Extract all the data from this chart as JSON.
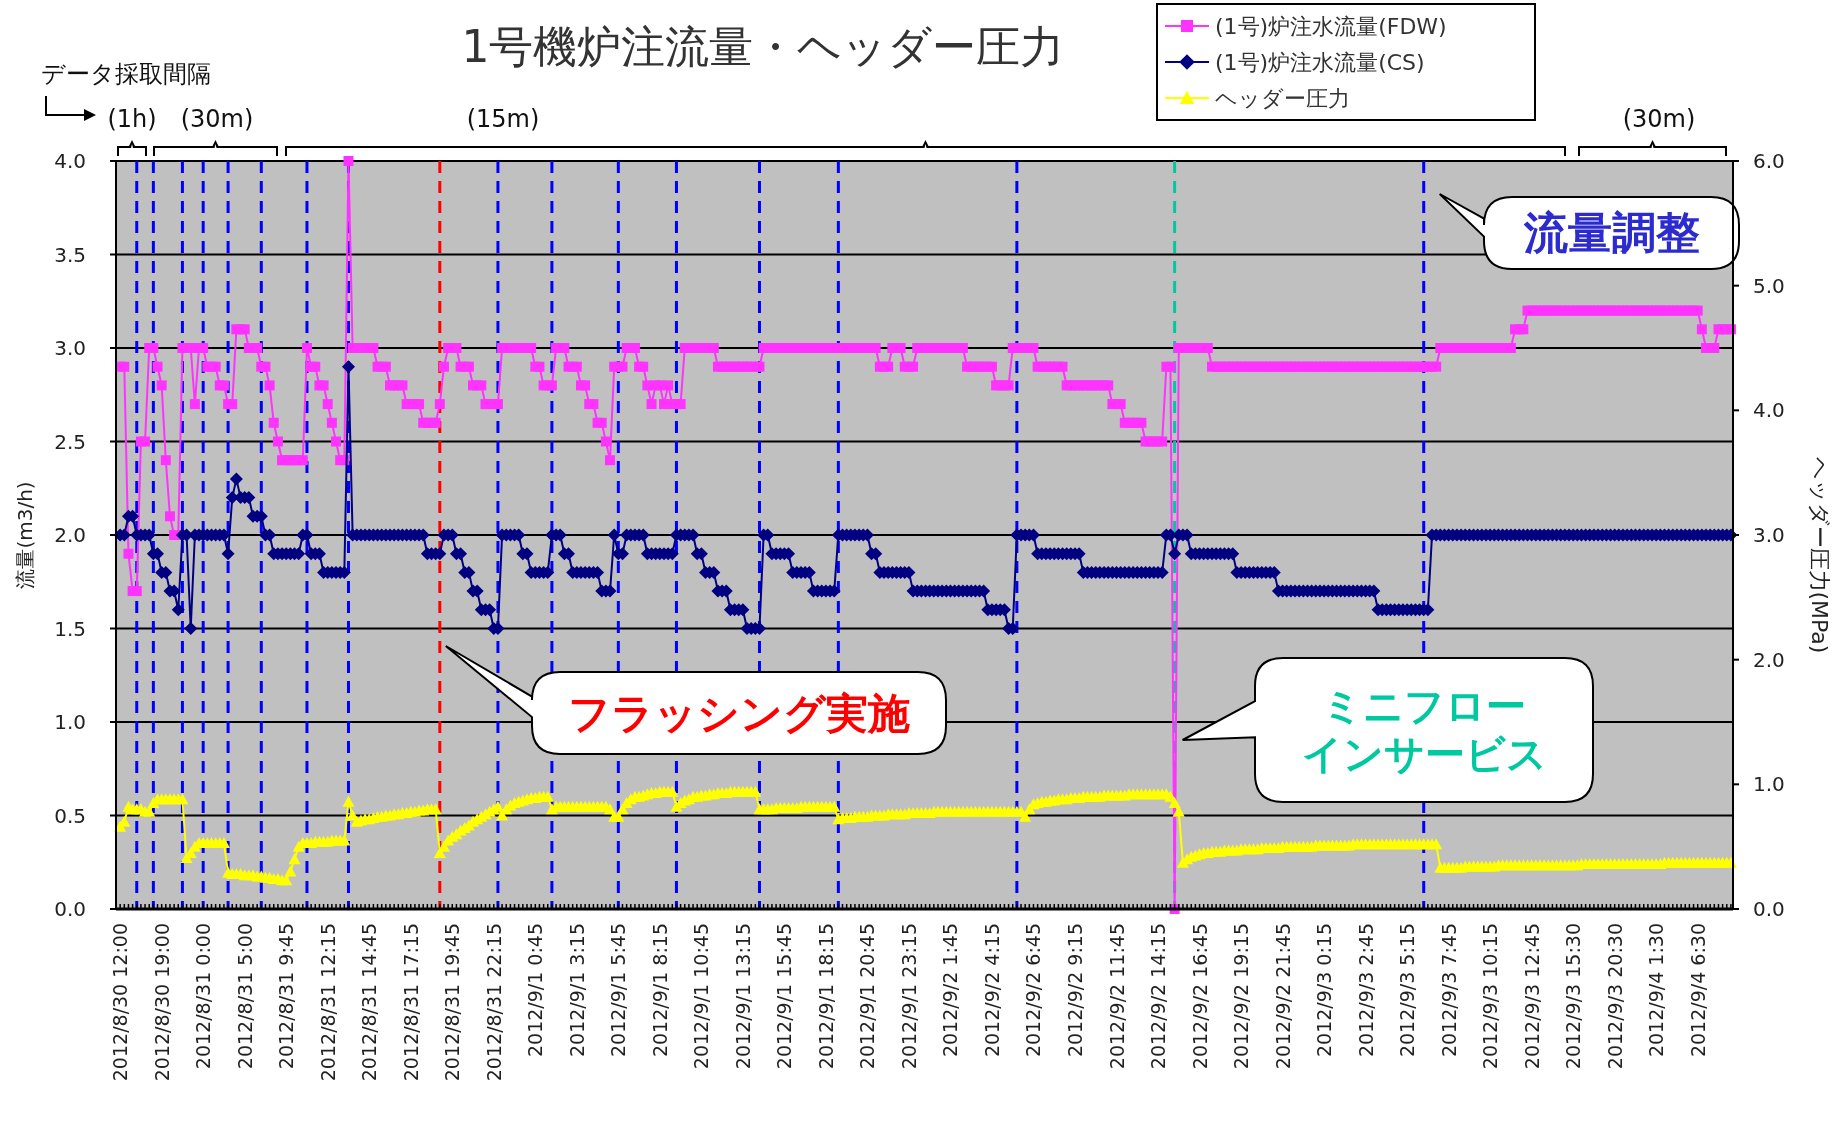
{
  "chart_data": {
    "type": "line",
    "title": "1号機炉注流量・ヘッダー圧力",
    "ylabel": "流量(m3/h)",
    "y2label": "ヘッダー圧力(MPa)",
    "categories": [
      "2012/8/30 12:00",
      null,
      null,
      null,
      null,
      null,
      null,
      null,
      null,
      null,
      "2012/8/30 19:00",
      null,
      null,
      null,
      null,
      null,
      null,
      null,
      null,
      null,
      "2012/8/31 0:00",
      null,
      null,
      null,
      null,
      null,
      null,
      null,
      null,
      null,
      "2012/8/31 5:00",
      null,
      null,
      null,
      null,
      null,
      null,
      null,
      null,
      null,
      "2012/8/31 9:45",
      null,
      null,
      null,
      null,
      null,
      null,
      null,
      null,
      null,
      "2012/8/31 12:15",
      null,
      null,
      null,
      null,
      null,
      null,
      null,
      null,
      null,
      "2012/8/31 14:45",
      null,
      null,
      null,
      null,
      null,
      null,
      null,
      null,
      null,
      "2012/8/31 17:15",
      null,
      null,
      null,
      null,
      null,
      null,
      null,
      null,
      null,
      "2012/8/31 19:45",
      null,
      null,
      null,
      null,
      null,
      null,
      null,
      null,
      null,
      "2012/8/31 22:15",
      null,
      null,
      null,
      null,
      null,
      null,
      null,
      null,
      null,
      "2012/9/1 0:45",
      null,
      null,
      null,
      null,
      null,
      null,
      null,
      null,
      null,
      "2012/9/1 3:15",
      null,
      null,
      null,
      null,
      null,
      null,
      null,
      null,
      null,
      "2012/9/1 5:45",
      null,
      null,
      null,
      null,
      null,
      null,
      null,
      null,
      null,
      "2012/9/1 8:15",
      null,
      null,
      null,
      null,
      null,
      null,
      null,
      null,
      null,
      "2012/9/1 10:45",
      null,
      null,
      null,
      null,
      null,
      null,
      null,
      null,
      null,
      "2012/9/1 13:15",
      null,
      null,
      null,
      null,
      null,
      null,
      null,
      null,
      null,
      "2012/9/1 15:45",
      null,
      null,
      null,
      null,
      null,
      null,
      null,
      null,
      null,
      "2012/9/1 18:15",
      null,
      null,
      null,
      null,
      null,
      null,
      null,
      null,
      null,
      "2012/9/1 20:45",
      null,
      null,
      null,
      null,
      null,
      null,
      null,
      null,
      null,
      "2012/9/1 23:15",
      null,
      null,
      null,
      null,
      null,
      null,
      null,
      null,
      null,
      "2012/9/2 1:45",
      null,
      null,
      null,
      null,
      null,
      null,
      null,
      null,
      null,
      "2012/9/2 4:15",
      null,
      null,
      null,
      null,
      null,
      null,
      null,
      null,
      null,
      "2012/9/2 6:45",
      null,
      null,
      null,
      null,
      null,
      null,
      null,
      null,
      null,
      "2012/9/2 9:15",
      null,
      null,
      null,
      null,
      null,
      null,
      null,
      null,
      null,
      "2012/9/2 11:45",
      null,
      null,
      null,
      null,
      null,
      null,
      null,
      null,
      null,
      "2012/9/2 14:15",
      null,
      null,
      null,
      null,
      null,
      null,
      null,
      null,
      null,
      "2012/9/2 16:45",
      null,
      null,
      null,
      null,
      null,
      null,
      null,
      null,
      null,
      "2012/9/2 19:15",
      null,
      null,
      null,
      null,
      null,
      null,
      null,
      null,
      null,
      "2012/9/2 21:45",
      null,
      null,
      null,
      null,
      null,
      null,
      null,
      null,
      null,
      "2012/9/3 0:15",
      null,
      null,
      null,
      null,
      null,
      null,
      null,
      null,
      null,
      "2012/9/3 2:45",
      null,
      null,
      null,
      null,
      null,
      null,
      null,
      null,
      null,
      "2012/9/3 5:15",
      null,
      null,
      null,
      null,
      null,
      null,
      null,
      null,
      null,
      "2012/9/3 7:45",
      null,
      null,
      null,
      null,
      null,
      null,
      null,
      null,
      null,
      "2012/9/3 10:15",
      null,
      null,
      null,
      null,
      null,
      null,
      null,
      null,
      null,
      "2012/9/3 12:45",
      null,
      null,
      null,
      null,
      null,
      null,
      null,
      null,
      null,
      "2012/9/3 15:30",
      null,
      null,
      null,
      null,
      null,
      null,
      null,
      null,
      null,
      "2012/9/3 20:30",
      null,
      null,
      null,
      null,
      null,
      null,
      null,
      null,
      null,
      "2012/9/4 1:30",
      null,
      null,
      null,
      null,
      null,
      null,
      null,
      null,
      null,
      "2012/9/4 6:30",
      null,
      null,
      null,
      null,
      null,
      null,
      null,
      null
    ],
    "ylim": [
      0,
      4
    ],
    "yticks": [
      {
        "value": 0,
        "label": "0.0"
      },
      {
        "value": 0.5,
        "label": "0.5"
      },
      {
        "value": 1,
        "label": "1.0"
      },
      {
        "value": 1.5,
        "label": "1.5"
      },
      {
        "value": 2,
        "label": "2.0"
      },
      {
        "value": 2.5,
        "label": "2.5"
      },
      {
        "value": 3,
        "label": "3.0"
      },
      {
        "value": 3.5,
        "label": "3.5"
      },
      {
        "value": 4,
        "label": "4.0"
      }
    ],
    "y2lim": [
      0,
      6
    ],
    "y2ticks": [
      {
        "value": 0,
        "label": "0.0"
      },
      {
        "value": 1,
        "label": "1.0"
      },
      {
        "value": 2,
        "label": "2.0"
      },
      {
        "value": 3,
        "label": "3.0"
      },
      {
        "value": 4,
        "label": "4.0"
      },
      {
        "value": 5,
        "label": "5.0"
      },
      {
        "value": 6,
        "label": "6.0"
      }
    ],
    "grid": "y",
    "legend": "top",
    "series": [
      {
        "name": "(1号)炉注水流量(FDW)",
        "color": "#ff33ff",
        "marker": "square",
        "values": [
          2.9,
          2.9,
          1.9,
          1.7,
          1.7,
          2.5,
          2.5,
          3.0,
          3.0,
          2.9,
          2.8,
          2.4,
          2.1,
          2.0,
          2.0,
          3.0,
          3.0,
          3.0,
          2.7,
          3.0,
          3.0,
          2.9,
          2.9,
          2.9,
          2.8,
          2.8,
          2.7,
          2.7,
          3.1,
          3.1,
          3.1,
          3.0,
          3.0,
          3.0,
          2.9,
          2.9,
          2.8,
          2.6,
          2.5,
          2.4,
          2.4,
          2.4,
          2.4,
          2.4,
          2.4,
          3.0,
          2.9,
          2.9,
          2.8,
          2.8,
          2.7,
          2.6,
          2.5,
          2.4,
          2.4,
          4.0,
          3.0,
          3.0,
          3.0,
          3.0,
          3.0,
          3.0,
          2.9,
          2.9,
          2.9,
          2.8,
          2.8,
          2.8,
          2.8,
          2.7,
          2.7,
          2.7,
          2.7,
          2.6,
          2.6,
          2.6,
          2.6,
          2.7,
          2.9,
          3.0,
          3.0,
          3.0,
          2.9,
          2.9,
          2.9,
          2.8,
          2.8,
          2.8,
          2.7,
          2.7,
          2.7,
          2.7,
          3.0,
          3.0,
          3.0,
          3.0,
          3.0,
          3.0,
          3.0,
          3.0,
          2.9,
          2.9,
          2.8,
          2.8,
          2.8,
          3.0,
          3.0,
          3.0,
          2.9,
          2.9,
          2.9,
          2.8,
          2.8,
          2.7,
          2.7,
          2.6,
          2.6,
          2.5,
          2.4,
          2.9,
          2.9,
          2.9,
          3.0,
          3.0,
          3.0,
          2.9,
          2.9,
          2.8,
          2.7,
          2.8,
          2.8,
          2.7,
          2.8,
          2.7,
          2.7,
          2.7,
          3.0,
          3.0,
          3.0,
          3.0,
          3.0,
          3.0,
          3.0,
          3.0,
          2.9,
          2.9,
          2.9,
          2.9,
          2.9,
          2.9,
          2.9,
          2.9,
          2.9,
          2.9,
          2.9,
          3.0,
          3.0,
          3.0,
          3.0,
          3.0,
          3.0,
          3.0,
          3.0,
          3.0,
          3.0,
          3.0,
          3.0,
          3.0,
          3.0,
          3.0,
          3.0,
          3.0,
          3.0,
          3.0,
          3.0,
          3.0,
          3.0,
          3.0,
          3.0,
          3.0,
          3.0,
          3.0,
          3.0,
          2.9,
          2.9,
          2.9,
          3.0,
          3.0,
          3.0,
          2.9,
          2.9,
          2.9,
          3.0,
          3.0,
          3.0,
          3.0,
          3.0,
          3.0,
          3.0,
          3.0,
          3.0,
          3.0,
          3.0,
          3.0,
          2.9,
          2.9,
          2.9,
          2.9,
          2.9,
          2.9,
          2.9,
          2.8,
          2.8,
          2.8,
          2.8,
          3.0,
          3.0,
          3.0,
          3.0,
          3.0,
          3.0,
          2.9,
          2.9,
          2.9,
          2.9,
          2.9,
          2.9,
          2.9,
          2.8,
          2.8,
          2.8,
          2.8,
          2.8,
          2.8,
          2.8,
          2.8,
          2.8,
          2.8,
          2.8,
          2.7,
          2.7,
          2.7,
          2.6,
          2.6,
          2.6,
          2.6,
          2.6,
          2.5,
          2.5,
          2.5,
          2.5,
          2.5,
          2.9,
          2.9,
          0.0,
          3.0,
          3.0,
          3.0,
          3.0,
          3.0,
          3.0,
          3.0,
          3.0,
          2.9,
          2.9,
          2.9,
          2.9,
          2.9,
          2.9,
          2.9,
          2.9,
          2.9,
          2.9,
          2.9,
          2.9,
          2.9,
          2.9,
          2.9,
          2.9,
          2.9,
          2.9,
          2.9,
          2.9,
          2.9,
          2.9,
          2.9,
          2.9,
          2.9,
          2.9,
          2.9,
          2.9,
          2.9,
          2.9,
          2.9,
          2.9,
          2.9,
          2.9,
          2.9,
          2.9,
          2.9,
          2.9,
          2.9,
          2.9,
          2.9,
          2.9,
          2.9,
          2.9,
          2.9,
          2.9,
          2.9,
          2.9,
          2.9,
          2.9,
          2.9,
          2.9,
          2.9,
          2.9,
          2.9,
          3.0,
          3.0,
          3.0,
          3.0,
          3.0,
          3.0,
          3.0,
          3.0,
          3.0,
          3.0,
          3.0,
          3.0,
          3.0,
          3.0,
          3.0,
          3.0,
          3.0,
          3.0,
          3.1,
          3.1,
          3.1,
          3.2,
          3.2,
          3.2,
          3.2,
          3.2,
          3.2,
          3.2,
          3.2,
          3.2,
          3.2,
          3.2,
          3.2,
          3.2,
          3.2,
          3.2,
          3.2,
          3.2,
          3.2,
          3.2,
          3.2,
          3.2,
          3.2,
          3.2,
          3.2,
          3.2,
          3.2,
          3.2,
          3.2,
          3.2,
          3.2,
          3.2,
          3.2,
          3.2,
          3.2,
          3.2,
          3.2,
          3.2,
          3.2,
          3.2,
          3.2,
          3.2,
          3.2,
          3.1,
          3.0,
          3.0,
          3.0,
          3.1,
          3.1,
          3.1,
          3.1
        ]
      },
      {
        "name": "(1号)炉注水流量(CS)",
        "color": "#000080",
        "marker": "diamond",
        "values": [
          2.0,
          2.0,
          2.1,
          2.1,
          2.0,
          2.0,
          2.0,
          2.0,
          1.9,
          1.9,
          1.8,
          1.8,
          1.7,
          1.7,
          1.6,
          2.0,
          2.0,
          1.5,
          2.0,
          2.0,
          2.0,
          2.0,
          2.0,
          2.0,
          2.0,
          2.0,
          1.9,
          2.2,
          2.3,
          2.2,
          2.2,
          2.2,
          2.1,
          2.1,
          2.1,
          2.0,
          2.0,
          1.9,
          1.9,
          1.9,
          1.9,
          1.9,
          1.9,
          1.9,
          2.0,
          2.0,
          1.9,
          1.9,
          1.9,
          1.8,
          1.8,
          1.8,
          1.8,
          1.8,
          1.8,
          2.9,
          2.0,
          2.0,
          2.0,
          2.0,
          2.0,
          2.0,
          2.0,
          2.0,
          2.0,
          2.0,
          2.0,
          2.0,
          2.0,
          2.0,
          2.0,
          2.0,
          2.0,
          2.0,
          1.9,
          1.9,
          1.9,
          1.9,
          2.0,
          2.0,
          2.0,
          1.9,
          1.9,
          1.8,
          1.8,
          1.7,
          1.7,
          1.6,
          1.6,
          1.6,
          1.5,
          1.5,
          2.0,
          2.0,
          2.0,
          2.0,
          2.0,
          1.9,
          1.9,
          1.8,
          1.8,
          1.8,
          1.8,
          1.8,
          2.0,
          2.0,
          2.0,
          1.9,
          1.9,
          1.8,
          1.8,
          1.8,
          1.8,
          1.8,
          1.8,
          1.8,
          1.7,
          1.7,
          1.7,
          2.0,
          1.9,
          1.9,
          2.0,
          2.0,
          2.0,
          2.0,
          2.0,
          1.9,
          1.9,
          1.9,
          1.9,
          1.9,
          1.9,
          1.9,
          2.0,
          2.0,
          2.0,
          2.0,
          2.0,
          1.9,
          1.9,
          1.8,
          1.8,
          1.8,
          1.7,
          1.7,
          1.7,
          1.6,
          1.6,
          1.6,
          1.6,
          1.5,
          1.5,
          1.5,
          1.5,
          2.0,
          2.0,
          1.9,
          1.9,
          1.9,
          1.9,
          1.9,
          1.8,
          1.8,
          1.8,
          1.8,
          1.8,
          1.7,
          1.7,
          1.7,
          1.7,
          1.7,
          1.7,
          2.0,
          2.0,
          2.0,
          2.0,
          2.0,
          2.0,
          2.0,
          2.0,
          1.9,
          1.9,
          1.8,
          1.8,
          1.8,
          1.8,
          1.8,
          1.8,
          1.8,
          1.8,
          1.7,
          1.7,
          1.7,
          1.7,
          1.7,
          1.7,
          1.7,
          1.7,
          1.7,
          1.7,
          1.7,
          1.7,
          1.7,
          1.7,
          1.7,
          1.7,
          1.7,
          1.7,
          1.6,
          1.6,
          1.6,
          1.6,
          1.6,
          1.5,
          1.5,
          2.0,
          2.0,
          2.0,
          2.0,
          2.0,
          1.9,
          1.9,
          1.9,
          1.9,
          1.9,
          1.9,
          1.9,
          1.9,
          1.9,
          1.9,
          1.9,
          1.8,
          1.8,
          1.8,
          1.8,
          1.8,
          1.8,
          1.8,
          1.8,
          1.8,
          1.8,
          1.8,
          1.8,
          1.8,
          1.8,
          1.8,
          1.8,
          1.8,
          1.8,
          1.8,
          1.8,
          2.0,
          2.0,
          1.9,
          2.0,
          2.0,
          2.0,
          1.9,
          1.9,
          1.9,
          1.9,
          1.9,
          1.9,
          1.9,
          1.9,
          1.9,
          1.9,
          1.9,
          1.8,
          1.8,
          1.8,
          1.8,
          1.8,
          1.8,
          1.8,
          1.8,
          1.8,
          1.8,
          1.7,
          1.7,
          1.7,
          1.7,
          1.7,
          1.7,
          1.7,
          1.7,
          1.7,
          1.7,
          1.7,
          1.7,
          1.7,
          1.7,
          1.7,
          1.7,
          1.7,
          1.7,
          1.7,
          1.7,
          1.7,
          1.7,
          1.7,
          1.7,
          1.6,
          1.6,
          1.6,
          1.6,
          1.6,
          1.6,
          1.6,
          1.6,
          1.6,
          1.6,
          1.6,
          1.6,
          1.6,
          2.0,
          2.0,
          2.0,
          2.0,
          2.0,
          2.0,
          2.0,
          2.0,
          2.0,
          2.0,
          2.0,
          2.0,
          2.0,
          2.0,
          2.0,
          2.0,
          2.0,
          2.0,
          2.0,
          2.0,
          2.0,
          2.0,
          2.0,
          2.0,
          2.0,
          2.0,
          2.0,
          2.0,
          2.0,
          2.0,
          2.0,
          2.0,
          2.0,
          2.0,
          2.0,
          2.0,
          2.0,
          2.0,
          2.0,
          2.0,
          2.0,
          2.0,
          2.0,
          2.0,
          2.0,
          2.0,
          2.0,
          2.0,
          2.0,
          2.0,
          2.0,
          2.0,
          2.0,
          2.0,
          2.0,
          2.0,
          2.0,
          2.0,
          2.0,
          2.0,
          2.0,
          2.0,
          2.0,
          2.0,
          2.0,
          2.0,
          2.0,
          2.0,
          2.0,
          2.0,
          2.0,
          2.0,
          2.0
        ]
      },
      {
        "name": "ヘッダー圧力",
        "color": "#ffff00",
        "marker": "triangle",
        "axis": "y2",
        "values": [
          0.66,
          0.7,
          0.82,
          0.8,
          0.8,
          0.8,
          0.78,
          0.78,
          0.85,
          0.88,
          0.88,
          0.88,
          0.88,
          0.88,
          0.88,
          0.88,
          0.41,
          0.45,
          0.5,
          0.53,
          0.53,
          0.53,
          0.53,
          0.53,
          0.53,
          0.53,
          0.29,
          0.28,
          0.28,
          0.28,
          0.27,
          0.27,
          0.27,
          0.26,
          0.26,
          0.25,
          0.25,
          0.24,
          0.24,
          0.23,
          0.23,
          0.3,
          0.4,
          0.5,
          0.53,
          0.53,
          0.53,
          0.54,
          0.54,
          0.54,
          0.54,
          0.55,
          0.55,
          0.55,
          0.55,
          0.86,
          0.75,
          0.7,
          0.71,
          0.72,
          0.72,
          0.73,
          0.74,
          0.74,
          0.75,
          0.75,
          0.76,
          0.76,
          0.77,
          0.77,
          0.78,
          0.78,
          0.79,
          0.79,
          0.8,
          0.8,
          0.8,
          0.45,
          0.5,
          0.55,
          0.58,
          0.6,
          0.63,
          0.65,
          0.67,
          0.7,
          0.72,
          0.74,
          0.76,
          0.78,
          0.8,
          0.82,
          0.75,
          0.8,
          0.83,
          0.85,
          0.86,
          0.87,
          0.88,
          0.89,
          0.89,
          0.9,
          0.9,
          0.9,
          0.8,
          0.82,
          0.82,
          0.82,
          0.82,
          0.82,
          0.82,
          0.82,
          0.82,
          0.82,
          0.82,
          0.82,
          0.82,
          0.82,
          0.8,
          0.74,
          0.74,
          0.8,
          0.85,
          0.88,
          0.9,
          0.9,
          0.91,
          0.92,
          0.93,
          0.93,
          0.94,
          0.94,
          0.94,
          0.94,
          0.82,
          0.85,
          0.87,
          0.88,
          0.9,
          0.9,
          0.91,
          0.91,
          0.92,
          0.92,
          0.93,
          0.93,
          0.93,
          0.94,
          0.94,
          0.94,
          0.94,
          0.94,
          0.94,
          0.94,
          0.8,
          0.8,
          0.8,
          0.8,
          0.81,
          0.81,
          0.81,
          0.81,
          0.81,
          0.81,
          0.82,
          0.82,
          0.82,
          0.82,
          0.82,
          0.82,
          0.82,
          0.82,
          0.82,
          0.72,
          0.73,
          0.73,
          0.73,
          0.74,
          0.74,
          0.74,
          0.74,
          0.75,
          0.75,
          0.75,
          0.75,
          0.76,
          0.76,
          0.76,
          0.76,
          0.76,
          0.77,
          0.77,
          0.77,
          0.77,
          0.77,
          0.77,
          0.78,
          0.78,
          0.78,
          0.78,
          0.78,
          0.78,
          0.78,
          0.78,
          0.78,
          0.78,
          0.78,
          0.78,
          0.78,
          0.78,
          0.78,
          0.78,
          0.78,
          0.78,
          0.78,
          0.78,
          0.78,
          0.78,
          0.74,
          0.8,
          0.84,
          0.85,
          0.86,
          0.86,
          0.87,
          0.87,
          0.88,
          0.88,
          0.88,
          0.89,
          0.89,
          0.89,
          0.9,
          0.9,
          0.9,
          0.9,
          0.9,
          0.91,
          0.91,
          0.91,
          0.91,
          0.91,
          0.91,
          0.92,
          0.92,
          0.92,
          0.92,
          0.92,
          0.92,
          0.92,
          0.92,
          0.92,
          0.92,
          0.9,
          0.85,
          0.78,
          0.37,
          0.4,
          0.42,
          0.43,
          0.44,
          0.45,
          0.45,
          0.46,
          0.46,
          0.46,
          0.47,
          0.47,
          0.47,
          0.47,
          0.48,
          0.48,
          0.48,
          0.48,
          0.48,
          0.49,
          0.49,
          0.49,
          0.49,
          0.49,
          0.5,
          0.5,
          0.5,
          0.5,
          0.5,
          0.5,
          0.5,
          0.5,
          0.51,
          0.51,
          0.51,
          0.51,
          0.51,
          0.51,
          0.51,
          0.51,
          0.51,
          0.52,
          0.52,
          0.52,
          0.52,
          0.52,
          0.52,
          0.52,
          0.52,
          0.52,
          0.52,
          0.52,
          0.52,
          0.52,
          0.52,
          0.52,
          0.52,
          0.52,
          0.52,
          0.52,
          0.52,
          0.52,
          0.33,
          0.33,
          0.33,
          0.33,
          0.33,
          0.33,
          0.34,
          0.34,
          0.34,
          0.34,
          0.34,
          0.34,
          0.34,
          0.34,
          0.35,
          0.35,
          0.35,
          0.35,
          0.35,
          0.35,
          0.35,
          0.35,
          0.35,
          0.35,
          0.35,
          0.35,
          0.35,
          0.35,
          0.35,
          0.35,
          0.35,
          0.35,
          0.35,
          0.35,
          0.36,
          0.36,
          0.36,
          0.36,
          0.36,
          0.36,
          0.36,
          0.36,
          0.36,
          0.36,
          0.36,
          0.36,
          0.36,
          0.36,
          0.36,
          0.36,
          0.36,
          0.36,
          0.36,
          0.36,
          0.37,
          0.37,
          0.37,
          0.37,
          0.37,
          0.37,
          0.37,
          0.37,
          0.37,
          0.37,
          0.37,
          0.37,
          0.37,
          0.37,
          0.37,
          0.37,
          0.37
        ]
      }
    ],
    "annotations": [
      "データ採取間隔",
      "(1h)",
      "(30m)",
      "(15m)",
      "(30m)",
      "フラッシング実施",
      "ミニフローインサービス",
      "流量調整"
    ]
  }
}
